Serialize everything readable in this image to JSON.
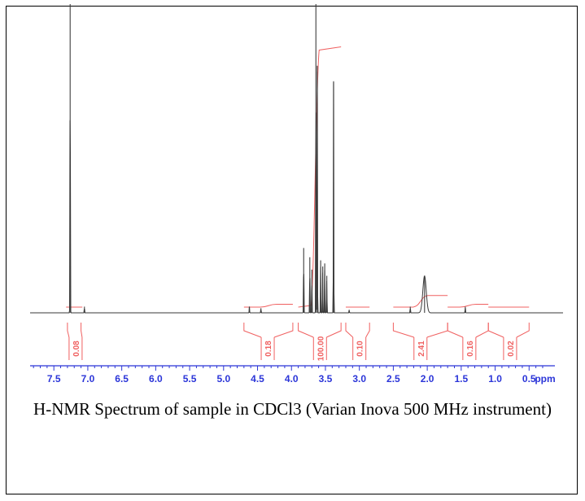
{
  "caption": "H-NMR Spectrum of sample in CDCl3 (Varian Inova 500 MHz instrument)",
  "colors": {
    "spectrum": "#3a3a3a",
    "integral": "#f06060",
    "axis": "#2b35d8",
    "frame": "#000000"
  },
  "chart_data": {
    "type": "line",
    "title": "",
    "xlabel": "ppm",
    "ylabel": "",
    "xlim": [
      7.85,
      0.0
    ],
    "x_reversed": true,
    "tick_values": [
      7.5,
      7.0,
      6.5,
      6.0,
      5.5,
      5.0,
      4.5,
      4.0,
      3.5,
      3.0,
      2.5,
      2.0,
      1.5,
      1.0,
      0.5
    ],
    "tick_labels": [
      "7.5",
      "7.0",
      "6.5",
      "6.0",
      "5.5",
      "5.0",
      "4.5",
      "4.0",
      "3.5",
      "3.0",
      "2.5",
      "2.0",
      "1.5",
      "1.0",
      "0.5"
    ],
    "unit_label": "ppm",
    "peaks": [
      {
        "ppm": 7.26,
        "height": 1.0
      },
      {
        "ppm": 7.05,
        "height": 0.02
      },
      {
        "ppm": 4.62,
        "height": 0.02
      },
      {
        "ppm": 4.45,
        "height": 0.015
      },
      {
        "ppm": 3.82,
        "height": 0.21
      },
      {
        "ppm": 3.73,
        "height": 0.18
      },
      {
        "ppm": 3.7,
        "height": 0.14
      },
      {
        "ppm": 3.64,
        "height": 1.0
      },
      {
        "ppm": 3.62,
        "height": 0.8
      },
      {
        "ppm": 3.57,
        "height": 0.17
      },
      {
        "ppm": 3.54,
        "height": 0.15
      },
      {
        "ppm": 3.51,
        "height": 0.16
      },
      {
        "ppm": 3.48,
        "height": 0.12
      },
      {
        "ppm": 3.38,
        "height": 0.75
      },
      {
        "ppm": 3.15,
        "height": 0.01
      },
      {
        "ppm": 2.25,
        "height": 0.02
      },
      {
        "ppm": 2.04,
        "height": 0.12,
        "broad": true
      },
      {
        "ppm": 1.44,
        "height": 0.02
      }
    ],
    "integrals": [
      {
        "label": "0.08",
        "from": 7.3,
        "to": 7.1,
        "label_ppm": 7.18,
        "rise": 0.0
      },
      {
        "label": "0.18",
        "from": 4.7,
        "to": 3.98,
        "label_ppm": 4.35,
        "rise": 0.01
      },
      {
        "label": "100.00",
        "from": 3.9,
        "to": 3.27,
        "label_ppm": 3.58,
        "rise": 0.9
      },
      {
        "label": "0.10",
        "from": 3.2,
        "to": 2.85,
        "label_ppm": 3.0,
        "rise": 0.0
      },
      {
        "label": "2.41",
        "from": 2.5,
        "to": 1.7,
        "label_ppm": 2.1,
        "rise": 0.04
      },
      {
        "label": "0.16",
        "from": 1.7,
        "to": 1.1,
        "label_ppm": 1.38,
        "rise": 0.01
      },
      {
        "label": "0.02",
        "from": 1.1,
        "to": 0.5,
        "label_ppm": 0.78,
        "rise": 0.0
      }
    ]
  }
}
